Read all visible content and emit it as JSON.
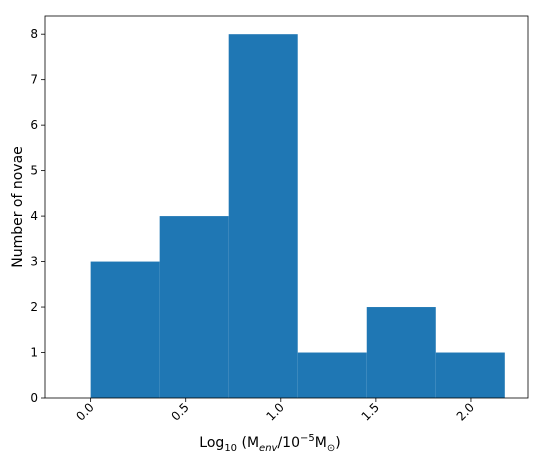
{
  "chart_data": {
    "type": "histogram",
    "xlabel": [
      "Log",
      "10",
      " (M",
      "env",
      "/10",
      "−5",
      "M",
      "⊙",
      ")"
    ],
    "ylabel": "Number of novae",
    "bins": [
      0.0,
      0.363,
      0.726,
      1.089,
      1.452,
      1.815,
      2.178
    ],
    "values": [
      3,
      4,
      8,
      1,
      2,
      1
    ],
    "color": "#1f77b4",
    "xlim": [
      -0.24,
      2.3
    ],
    "ylim": [
      0,
      8.4
    ],
    "xticks": [
      {
        "value": 0,
        "label": "0.0"
      },
      {
        "value": 0.5,
        "label": "0.5"
      },
      {
        "value": 1,
        "label": "1.0"
      },
      {
        "value": 1.5,
        "label": "1.5"
      },
      {
        "value": 2,
        "label": "2.0"
      }
    ],
    "yticks": [
      0,
      1,
      2,
      3,
      4,
      5,
      6,
      7,
      8
    ]
  }
}
